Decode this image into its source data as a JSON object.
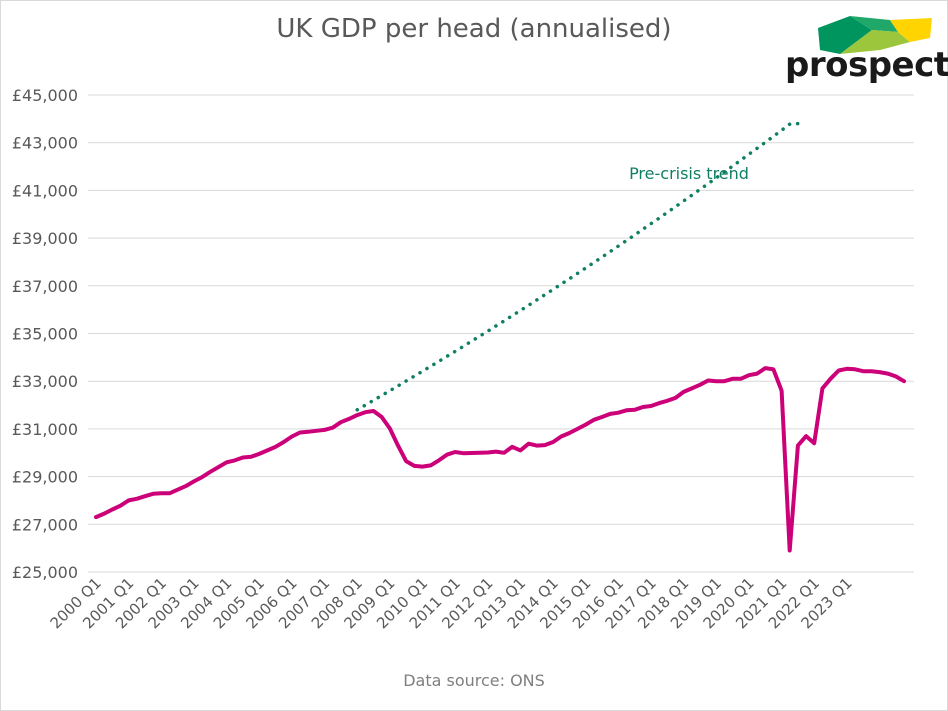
{
  "chart_data": {
    "type": "line",
    "title": "UK GDP per head (annualised)",
    "source": "Data source: ONS",
    "logo": {
      "text": "prospect",
      "colors": [
        "#00945e",
        "#9cc63b",
        "#ffd400"
      ]
    },
    "ylim": [
      25000,
      45000
    ],
    "yticks": [
      25000,
      27000,
      29000,
      31000,
      33000,
      35000,
      37000,
      39000,
      41000,
      43000,
      45000
    ],
    "ytick_labels": [
      "£25,000",
      "£27,000",
      "£29,000",
      "£31,000",
      "£33,000",
      "£35,000",
      "£37,000",
      "£39,000",
      "£41,000",
      "£43,000",
      "£45,000"
    ],
    "xtick_labels": [
      "2000 Q1",
      "2001 Q1",
      "2002 Q1",
      "2003 Q1",
      "2004 Q1",
      "2005 Q1",
      "2006 Q1",
      "2007 Q1",
      "2008 Q1",
      "2009 Q1",
      "2010 Q1",
      "2011 Q1",
      "2012 Q1",
      "2013 Q1",
      "2014 Q1",
      "2015 Q1",
      "2016 Q1",
      "2017 Q1",
      "2018 Q1",
      "2019 Q1",
      "2020 Q1",
      "2021 Q1",
      "2022 Q1",
      "2023 Q1"
    ],
    "grid": true,
    "series": [
      {
        "name": "",
        "color": "#cc0078",
        "style": "solid",
        "values": [
          27300,
          27450,
          27620,
          27780,
          28000,
          28070,
          28180,
          28280,
          28300,
          28300,
          28450,
          28600,
          28800,
          28980,
          29200,
          29400,
          29600,
          29680,
          29800,
          29830,
          29950,
          30100,
          30250,
          30450,
          30680,
          30850,
          30880,
          30920,
          30960,
          31050,
          31280,
          31420,
          31580,
          31700,
          31750,
          31500,
          31020,
          30300,
          29650,
          29450,
          29420,
          29470,
          29680,
          29920,
          30030,
          29980,
          29990,
          30000,
          30010,
          30050,
          30000,
          30250,
          30100,
          30380,
          30300,
          30320,
          30450,
          30680,
          30830,
          31000,
          31180,
          31380,
          31500,
          31630,
          31680,
          31780,
          31800,
          31920,
          31960,
          32080,
          32180,
          32300,
          32550,
          32700,
          32850,
          33030,
          33000,
          33000,
          33100,
          33100,
          33250,
          33320,
          33550,
          33500,
          32600,
          25900,
          30300,
          30700,
          30400,
          32700,
          33100,
          33450,
          33520,
          33500,
          33420,
          33420,
          33380,
          33320,
          33200,
          33000
        ]
      },
      {
        "name": "Pre-crisis trend",
        "color": "#0e7f63",
        "style": "dotted",
        "start_index": 32,
        "values": [
          31800,
          32000,
          32200,
          32401,
          32602,
          32805,
          33008,
          33212,
          33418,
          33624,
          33832,
          34040,
          34250,
          34460,
          34672,
          34885,
          35098,
          35313,
          35529,
          35746,
          35964,
          36183,
          36404,
          36625,
          36847,
          37071,
          37295,
          37521,
          37748,
          37976,
          38205,
          38435,
          38666,
          38899,
          39132,
          39367,
          39603,
          39839,
          40077,
          40316,
          40556,
          40797,
          41040,
          41283,
          41527,
          41773,
          42019,
          42267,
          42516,
          42766,
          43017,
          43269,
          43522,
          43777,
          43800
        ]
      }
    ],
    "annotations": [
      {
        "text": "Pre-crisis trend",
        "color": "#0e7f63"
      }
    ]
  }
}
